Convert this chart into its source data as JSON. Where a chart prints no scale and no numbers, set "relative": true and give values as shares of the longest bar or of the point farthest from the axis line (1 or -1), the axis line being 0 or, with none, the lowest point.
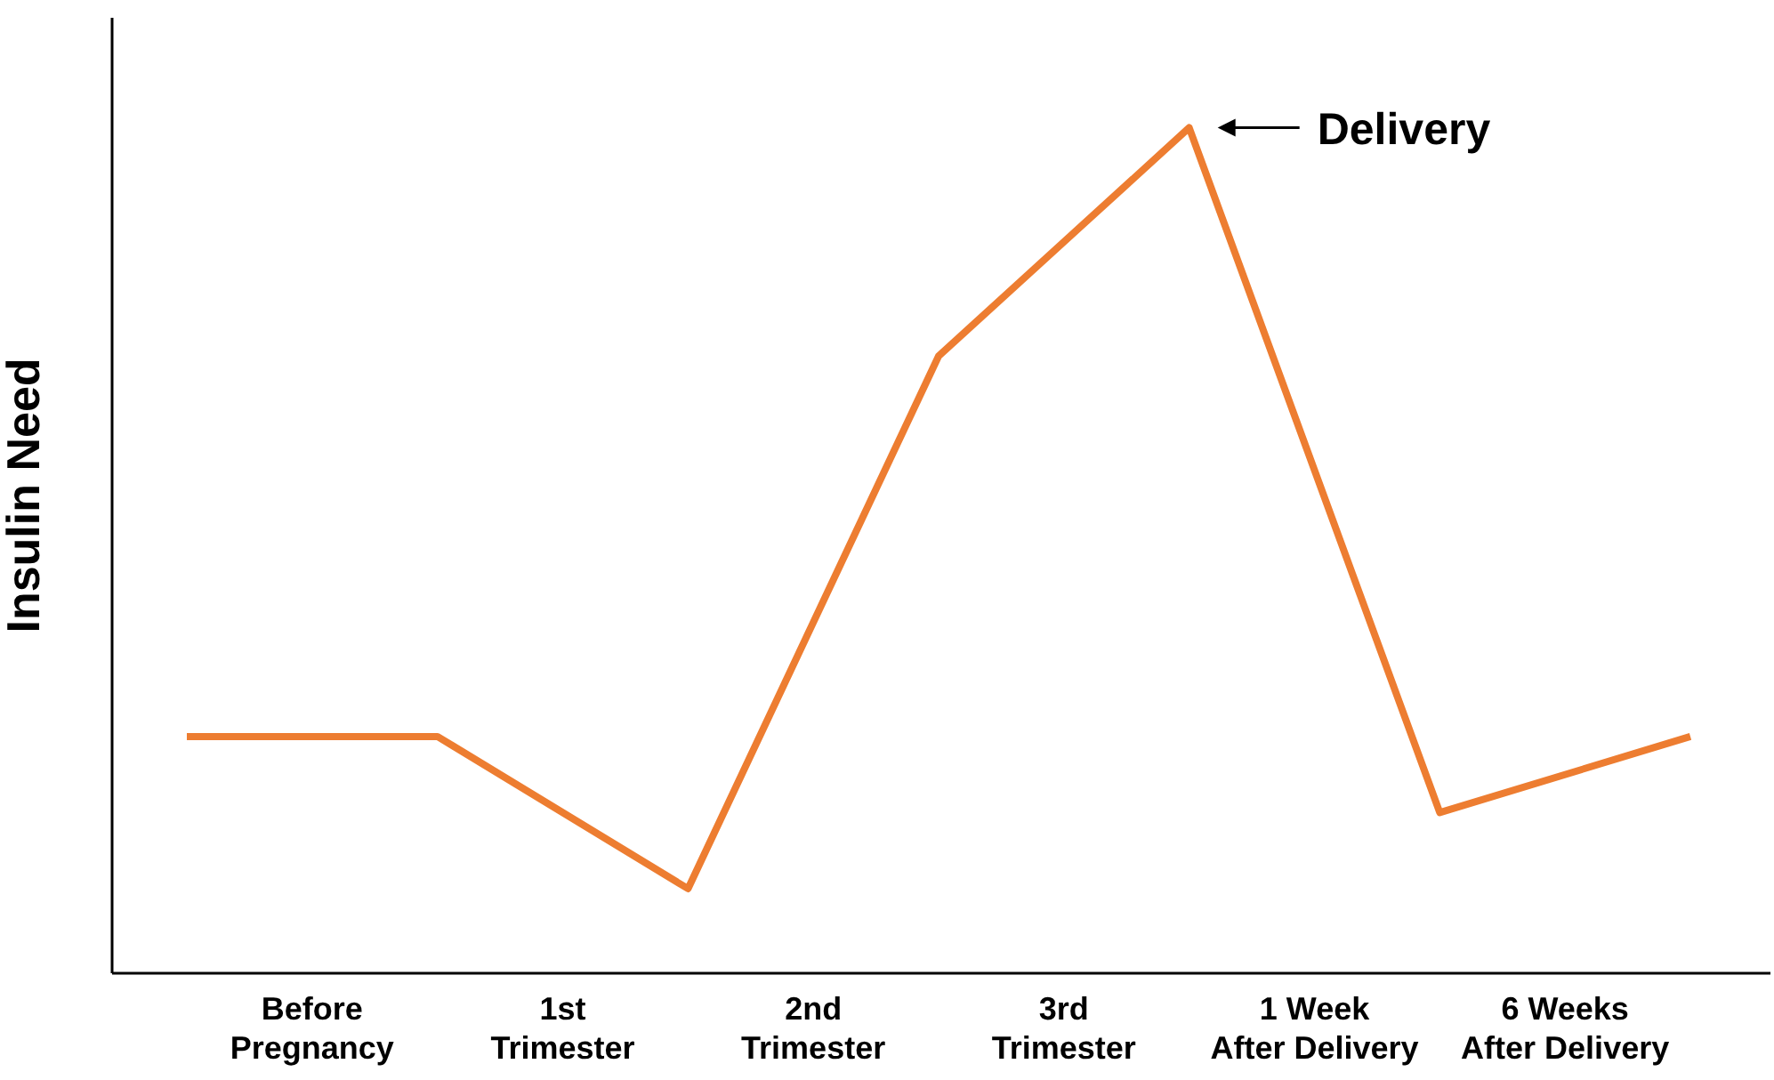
{
  "chart_data": {
    "type": "line",
    "ylabel": "Insulin Need",
    "relative": true,
    "categories": [
      null,
      "Before Pregnancy",
      null,
      "1st Trimester",
      null,
      "2nd Trimester",
      null,
      "3rd Trimester",
      null,
      "1 Week After Delivery",
      null,
      "6 Weeks After Delivery",
      null
    ],
    "series": [
      {
        "color": "#ed7d31",
        "values": [
          0.28,
          null,
          0.28,
          null,
          0.1,
          null,
          0.73,
          null,
          1,
          null,
          0.19,
          null,
          0.28
        ]
      }
    ],
    "annotations": [
      "Delivery"
    ],
    "grid": false,
    "legend": false,
    "marker": "none",
    "line_style": "solid"
  }
}
